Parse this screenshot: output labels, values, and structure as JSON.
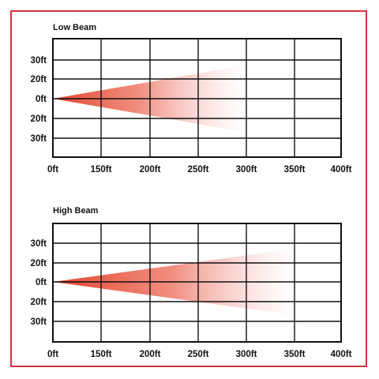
{
  "colors": {
    "frame": "#d0323a",
    "beam": "#e5432b",
    "grid": "#111111"
  },
  "chart_data": [
    {
      "type": "area",
      "title": "Low Beam",
      "x_ticks": [
        "0ft",
        "150ft",
        "200ft",
        "250ft",
        "300ft",
        "350ft",
        "400ft"
      ],
      "y_ticks": [
        "30ft",
        "20ft",
        "0ft",
        "20ft",
        "30ft"
      ],
      "beam_reach_ft": 300,
      "beam_spread_ft": [
        -27,
        27
      ]
    },
    {
      "type": "area",
      "title": "High Beam",
      "x_ticks": [
        "0ft",
        "150ft",
        "200ft",
        "250ft",
        "300ft",
        "350ft",
        "400ft"
      ],
      "y_ticks": [
        "30ft",
        "20ft",
        "0ft",
        "20ft",
        "30ft"
      ],
      "beam_reach_ft": 350,
      "beam_spread_ft": [
        -27,
        27
      ]
    }
  ]
}
